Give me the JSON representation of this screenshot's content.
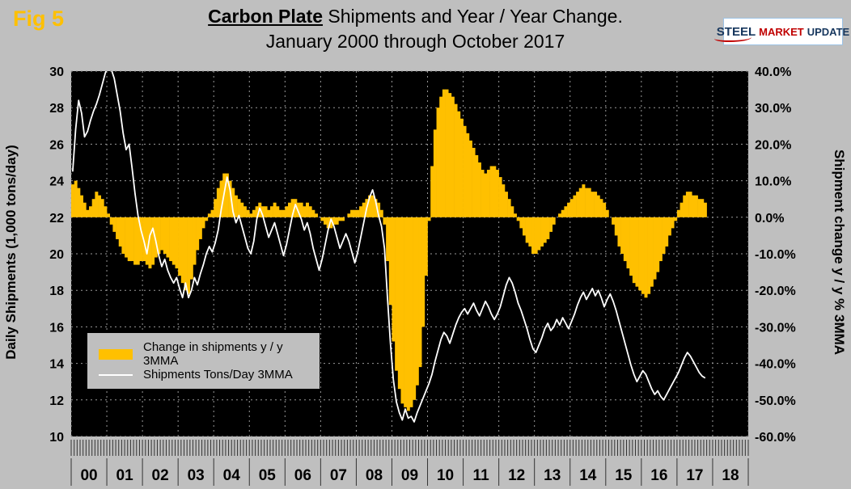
{
  "header": {
    "fig_label": "Fig 5",
    "title_bold": "Carbon Plate",
    "title_rest": " Shipments and Year / Year Change.",
    "title_line2": "January 2000 through October 2017"
  },
  "logo": {
    "part1": "STEEL",
    "part2": "MARKET",
    "part3": "UPDATE"
  },
  "legend": {
    "bar_label": "Change in shipments y / y 3MMA",
    "line_label": "Shipments Tons/Day 3MMA"
  },
  "axes": {
    "left_title": "Daily Shipments (1,000 tons/day)",
    "right_title": "Shipment change y / y % 3MMA",
    "left_tick_labels": [
      "30",
      "28",
      "26",
      "24",
      "22",
      "20",
      "18",
      "16",
      "14",
      "12",
      "10"
    ],
    "right_tick_labels": [
      "40.0%",
      "30.0%",
      "20.0%",
      "10.0%",
      "0.0%",
      "-10.0%",
      "-20.0%",
      "-30.0%",
      "-40.0%",
      "-50.0%",
      "-60.0%"
    ],
    "x_tick_labels": [
      "00",
      "01",
      "02",
      "03",
      "04",
      "05",
      "06",
      "07",
      "08",
      "09",
      "10",
      "11",
      "12",
      "13",
      "14",
      "15",
      "16",
      "17",
      "18"
    ]
  },
  "chart_data": {
    "type": "bar+line",
    "title": "Carbon Plate Shipments and Year / Year Change. January 2000 through October 2017",
    "x_start": "2000-01",
    "x_end": "2017-10",
    "x_axis_years_shown": 19,
    "plot_bg": "#000000",
    "grid_color": "#9a9a9a",
    "left_axis": {
      "label": "Daily Shipments (1,000 tons/day)",
      "min": 10,
      "max": 30,
      "step": 2
    },
    "right_axis": {
      "label": "Shipment change y / y % 3MMA",
      "min": -60,
      "max": 40,
      "step": 10,
      "format": "percent"
    },
    "series": [
      {
        "name": "Change in shipments y / y 3MMA",
        "type": "bar",
        "axis": "right",
        "color": "#FFC000",
        "values": [
          9,
          10,
          8,
          6,
          4,
          2,
          3,
          5,
          7,
          6,
          5,
          3,
          1,
          -2,
          -4,
          -6,
          -8,
          -10,
          -11,
          -12,
          -12,
          -13,
          -13,
          -12,
          -12,
          -13,
          -14,
          -13,
          -11,
          -10,
          -9,
          -10,
          -11,
          -12,
          -13,
          -14,
          -16,
          -18,
          -20,
          -21,
          -17,
          -13,
          -9,
          -6,
          -3,
          -1,
          1,
          2,
          5,
          8,
          10,
          12,
          12,
          10,
          8,
          6,
          5,
          4,
          3,
          2,
          1,
          2,
          3,
          4,
          3,
          3,
          2,
          3,
          4,
          3,
          2,
          2,
          3,
          4,
          5,
          5,
          4,
          4,
          3,
          4,
          3,
          2,
          1,
          0,
          -1,
          -2,
          -3,
          -3,
          -2,
          -2,
          -1,
          -1,
          0,
          1,
          2,
          2,
          2,
          3,
          4,
          5,
          6,
          6,
          5,
          4,
          2,
          -2,
          -12,
          -24,
          -34,
          -42,
          -47,
          -51,
          -52,
          -53,
          -52,
          -50,
          -46,
          -41,
          -30,
          -16,
          -1,
          14,
          24,
          30,
          33,
          35,
          35,
          34,
          33,
          31,
          29,
          27,
          25,
          23,
          21,
          19,
          17,
          15,
          13,
          12,
          13,
          14,
          14,
          13,
          11,
          9,
          7,
          5,
          3,
          1,
          -1,
          -3,
          -5,
          -7,
          -8,
          -10,
          -10,
          -9,
          -8,
          -7,
          -6,
          -4,
          -2,
          0,
          1,
          2,
          3,
          4,
          5,
          6,
          7,
          8,
          9,
          8,
          8,
          7,
          7,
          6,
          5,
          4,
          2,
          0,
          -2,
          -5,
          -8,
          -10,
          -12,
          -14,
          -16,
          -18,
          -19,
          -20,
          -21,
          -22,
          -21,
          -19,
          -17,
          -15,
          -12,
          -10,
          -8,
          -5,
          -3,
          -1,
          2,
          4,
          6,
          7,
          7,
          6,
          6,
          5,
          5,
          4
        ]
      },
      {
        "name": "Shipments Tons/Day 3MMA",
        "type": "line",
        "axis": "left",
        "color": "#FFFFFF",
        "values": [
          24.5,
          26.8,
          28.4,
          27.7,
          26.4,
          26.7,
          27.3,
          27.8,
          28.2,
          28.7,
          29.3,
          29.9,
          30.3,
          30.1,
          29.6,
          28.7,
          27.8,
          26.6,
          25.7,
          26.0,
          24.7,
          23.3,
          22.1,
          21.3,
          20.7,
          20.0,
          21.0,
          21.4,
          20.7,
          19.9,
          19.3,
          19.7,
          19.1,
          18.7,
          18.4,
          18.7,
          18.1,
          17.6,
          18.4,
          17.6,
          18.0,
          18.7,
          18.3,
          18.9,
          19.4,
          20.0,
          20.4,
          20.1,
          20.6,
          21.3,
          22.4,
          23.3,
          24.2,
          23.5,
          22.3,
          21.7,
          22.1,
          21.5,
          20.9,
          20.3,
          20.0,
          20.7,
          21.9,
          22.5,
          22.1,
          21.5,
          20.9,
          21.3,
          21.7,
          21.1,
          20.5,
          19.9,
          20.5,
          21.3,
          22.1,
          22.7,
          22.3,
          21.9,
          21.3,
          21.7,
          21.1,
          20.3,
          19.7,
          19.1,
          19.7,
          20.5,
          21.3,
          21.9,
          21.5,
          20.9,
          20.3,
          20.7,
          21.1,
          20.7,
          20.1,
          19.5,
          20.1,
          20.9,
          21.7,
          22.5,
          23.1,
          23.5,
          22.9,
          22.1,
          21.5,
          20.3,
          17.6,
          15.1,
          13.1,
          11.9,
          11.3,
          10.9,
          11.5,
          11.0,
          11.1,
          10.8,
          11.3,
          11.7,
          12.1,
          12.5,
          12.9,
          13.4,
          14.1,
          14.7,
          15.3,
          15.7,
          15.5,
          15.1,
          15.6,
          16.1,
          16.5,
          16.8,
          17.0,
          16.7,
          17.0,
          17.3,
          16.9,
          16.6,
          17.0,
          17.4,
          17.1,
          16.7,
          16.4,
          16.7,
          17.1,
          17.7,
          18.3,
          18.7,
          18.4,
          17.9,
          17.3,
          16.9,
          16.4,
          15.9,
          15.3,
          14.8,
          14.6,
          15.0,
          15.4,
          15.9,
          16.2,
          15.8,
          16.0,
          16.4,
          16.1,
          16.5,
          16.2,
          15.9,
          16.3,
          16.7,
          17.2,
          17.6,
          17.9,
          17.5,
          17.8,
          18.1,
          17.7,
          18.0,
          17.6,
          17.1,
          17.5,
          17.8,
          17.4,
          16.9,
          16.3,
          15.7,
          15.1,
          14.5,
          13.9,
          13.4,
          13.0,
          13.3,
          13.6,
          13.4,
          13.0,
          12.6,
          12.3,
          12.5,
          12.2,
          12.0,
          12.3,
          12.6,
          12.9,
          13.2,
          13.5,
          13.9,
          14.3,
          14.6,
          14.4,
          14.1,
          13.8,
          13.5,
          13.3,
          13.2
        ]
      }
    ]
  }
}
